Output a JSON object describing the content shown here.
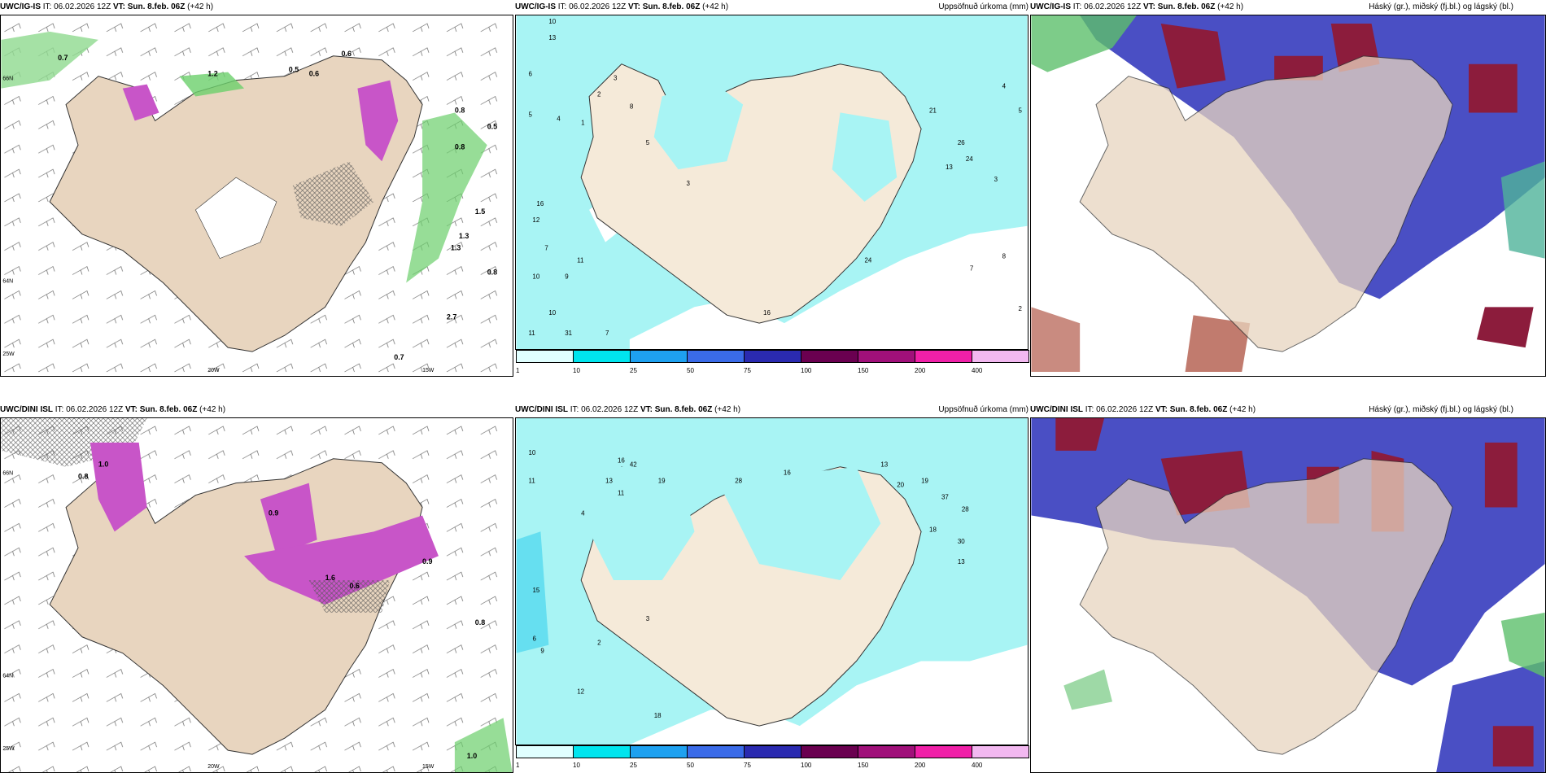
{
  "panels": [
    {
      "model": "UWC/IG-IS",
      "it": " IT: 06.02.2026 12Z ",
      "vt": "VT: Sun. 8.feb. 06Z",
      "lead": " (+42 h)",
      "right": ""
    },
    {
      "model": "UWC/IG-IS",
      "it": " IT: 06.02.2026 12Z ",
      "vt": "VT: Sun. 8.feb. 06Z",
      "lead": " (+42 h)",
      "right": "Uppsöfnuð úrkoma (mm)"
    },
    {
      "model": "UWC/IG-IS",
      "it": " IT: 06.02.2026 12Z ",
      "vt": "VT: Sun. 8.feb. 06Z",
      "lead": " (+42 h)",
      "right": "Háský (gr.), miðský (fj.bl.) og lágský (bl.)"
    },
    {
      "model": "UWC/DINI ISL",
      "it": " IT: 06.02.2026 12Z ",
      "vt": "VT: Sun. 8.feb. 06Z",
      "lead": " (+42 h)",
      "right": ""
    },
    {
      "model": "UWC/DINI ISL",
      "it": " IT: 06.02.2026 12Z ",
      "vt": "VT: Sun. 8.feb. 06Z",
      "lead": " (+42 h)",
      "right": "Uppsöfnuð úrkoma (mm)"
    },
    {
      "model": "UWC/DINI ISL",
      "it": " IT: 06.02.2026 12Z ",
      "vt": "VT: Sun. 8.feb. 06Z",
      "lead": " (+42 h)",
      "right": "Háský (gr.), miðský (fj.bl.) og lágský (bl.)"
    }
  ],
  "legend": {
    "ticks": [
      "1",
      "10",
      "25",
      "50",
      "75",
      "100",
      "150",
      "200",
      "400"
    ],
    "colors": [
      "#e0ffff",
      "#00e5ee",
      "#1ea1f0",
      "#3a6be8",
      "#2a2ab0",
      "#6a0050",
      "#a0107a",
      "#f020a8",
      "#f2b8f0"
    ]
  },
  "axes": {
    "lon_20w": "20W",
    "lon_15w": "15W",
    "lat_66n": "66N",
    "lat_64n": "64N",
    "lat_25w": "25W",
    "lat_65n": "65N"
  },
  "snow_labels_top": [
    "0.7",
    "1.2",
    "0.5",
    "0.6",
    "0.6",
    "0.8",
    "0.5",
    "0.8",
    "1.5",
    "1.3",
    "1.3",
    "0.8",
    "0.7",
    "2.7"
  ],
  "snow_labels_bottom": [
    "0.8",
    "1.0",
    "0.9",
    "1.6",
    "0.6",
    "0.9",
    "1.0",
    "0.8"
  ],
  "precip_top": [
    "10",
    "13",
    "6",
    "5",
    "4",
    "1",
    "16",
    "12",
    "7",
    "11",
    "10",
    "9",
    "10",
    "11",
    "31",
    "7",
    "2",
    "3",
    "8",
    "5",
    "3",
    "21",
    "26",
    "24",
    "13",
    "3",
    "7",
    "8",
    "2",
    "4",
    "5",
    "16",
    "24"
  ],
  "precip_bottom": [
    "10",
    "11",
    "15",
    "16",
    "42",
    "19",
    "13",
    "11",
    "6",
    "9",
    "28",
    "16",
    "13",
    "20",
    "19",
    "37",
    "28",
    "18",
    "30",
    "13",
    "4",
    "12",
    "18",
    "2",
    "3"
  ]
}
